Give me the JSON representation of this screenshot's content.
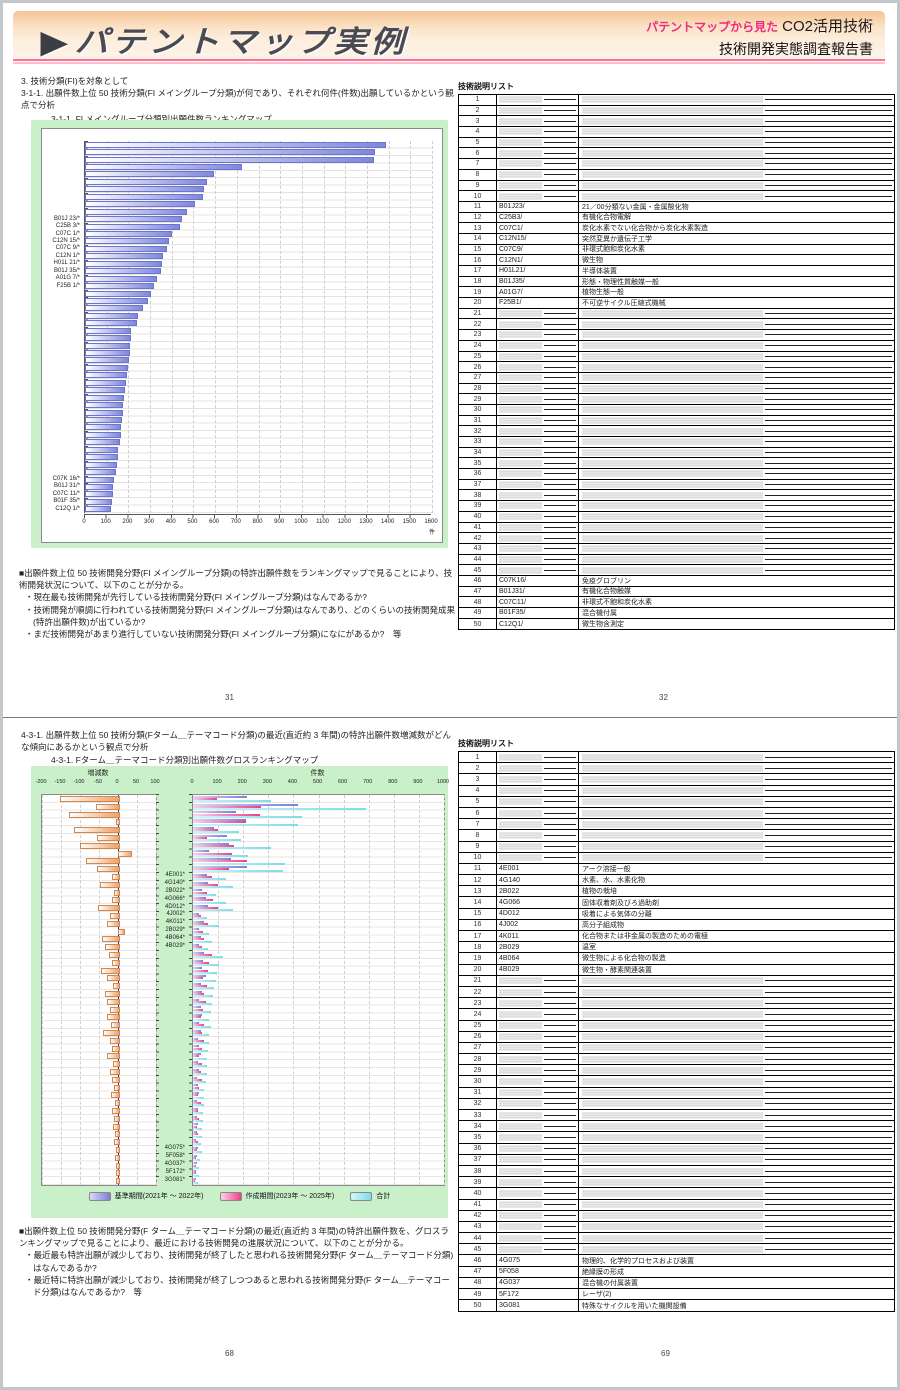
{
  "header": {
    "title": "パテントマップ実例",
    "right_pink": "パテントマップから見た",
    "right_black": "CO2活用技術",
    "right_line2": "技術開発実態調査報告書",
    "colors": {
      "accent_pink": "#ee2b7e",
      "header_top": "#f5c493",
      "header_bottom": "#fdf3e8",
      "underline": "#ff6e96",
      "chart_bg_green": "#c9f0c9"
    }
  },
  "section1": {
    "heading": "3. 技術分類(FI)を対象として",
    "subheading": "3-1-1. 出願件数上位 50 技術分類(FI メイングループ分類)が何であり、それぞれ何件(件数)出願しているかという観点で分析",
    "chart_caption": "3-1-1. FI メイングループ分類別出願件数ランキングマップ",
    "notes_intro": "■出願件数上位 50 技術開発分野(FI メイングループ分類)の特許出願件数をランキングマップで見ることにより、技術開発状況について、以下のことが分かる。",
    "notes": [
      "・現在最も技術開発が先行している技術開発分野(FI メイングループ分類)はなんであるか?",
      "・技術開発が順調に行われている技術開発分野(FI メイングループ分類)はなんであり、どのくらいの技術開発成果(特許出願件数)が出ているか?",
      "・まだ技術開発があまり進行していない技術開発分野(FI メイングループ分類)になにがあるか?　等"
    ],
    "page_left": "31",
    "page_right": "32",
    "table": {
      "title": "技術説明リスト",
      "rows": [
        [
          "1",
          "",
          ""
        ],
        [
          "2",
          "",
          ""
        ],
        [
          "3",
          "",
          ""
        ],
        [
          "4",
          "",
          ""
        ],
        [
          "5",
          "",
          ""
        ],
        [
          "6",
          "",
          ""
        ],
        [
          "7",
          "",
          ""
        ],
        [
          "8",
          "",
          ""
        ],
        [
          "9",
          "",
          ""
        ],
        [
          "10",
          "",
          ""
        ],
        [
          "11",
          "B01J23/",
          "21／00分類ない金属・金属酸化物"
        ],
        [
          "12",
          "C25B3/",
          "有機化合物電解"
        ],
        [
          "13",
          "C07C1/",
          "炭化水素でない化合物から炭化水素製造"
        ],
        [
          "14",
          "C12N15/",
          "突然変異か遺伝子工学"
        ],
        [
          "15",
          "C07C9/",
          "非環式飽和炭化水素"
        ],
        [
          "16",
          "C12N1/",
          "微生物"
        ],
        [
          "17",
          "H01L21/",
          "半導体装置"
        ],
        [
          "18",
          "B01J35/",
          "形態・物理性質触媒一般"
        ],
        [
          "19",
          "A01G7/",
          "植物生態一般"
        ],
        [
          "20",
          "F25B1/",
          "不可逆サイクル圧縮式機械"
        ],
        [
          "21",
          "",
          ""
        ],
        [
          "22",
          "",
          ""
        ],
        [
          "23",
          "",
          ""
        ],
        [
          "24",
          "",
          ""
        ],
        [
          "25",
          "",
          ""
        ],
        [
          "26",
          "",
          ""
        ],
        [
          "27",
          "",
          ""
        ],
        [
          "28",
          "",
          ""
        ],
        [
          "29",
          "",
          ""
        ],
        [
          "30",
          "",
          ""
        ],
        [
          "31",
          "",
          ""
        ],
        [
          "32",
          "",
          ""
        ],
        [
          "33",
          "",
          ""
        ],
        [
          "34",
          "",
          ""
        ],
        [
          "35",
          "",
          ""
        ],
        [
          "36",
          "",
          ""
        ],
        [
          "37",
          "",
          ""
        ],
        [
          "38",
          "",
          ""
        ],
        [
          "39",
          "",
          ""
        ],
        [
          "40",
          "",
          ""
        ],
        [
          "41",
          "",
          ""
        ],
        [
          "42",
          "",
          ""
        ],
        [
          "43",
          "",
          ""
        ],
        [
          "44",
          "",
          ""
        ],
        [
          "45",
          "",
          ""
        ],
        [
          "46",
          "C07K16/",
          "免疫グロブリン"
        ],
        [
          "47",
          "B01J31/",
          "有機化合物触媒"
        ],
        [
          "48",
          "C07C11/",
          "非環式不飽和炭化水素"
        ],
        [
          "49",
          "B01F35/",
          "混合機付属"
        ],
        [
          "50",
          "C12Q1/",
          "微生物含測定"
        ]
      ]
    }
  },
  "section2": {
    "subheading": "4-3-1. 出願件数上位 50 技術分類(Fターム＿テーマコード分類)の最近(直近約 3 年間)の特許出願件数増減数がどんな傾向にあるかという観点で分析",
    "chart_caption": "4-3-1. Fターム＿テーマコード分類別出願件数グロスランキングマップ",
    "notes_intro": "■出願件数上位 50 技術開発分野(F ターム＿テーマコード分類)の最近(直近約 3 年間)の特許出願件数を、グロスランキングマップで見ることにより、最近における技術開発の進展状況について、以下のことが分かる。",
    "notes": [
      "・最近最も特許出願が減少しており、技術開発が終了したと思われる技術開発分野(F ターム＿テーマコード分類)はなんであるか?",
      "・最近特に特許出願が減少しており、技術開発が終了しつつあると思われる技術開発分野(F ターム＿テーマコード分類)はなんであるか?　等"
    ],
    "page_left": "68",
    "page_right": "69",
    "table": {
      "title": "技術説明リスト",
      "rows": [
        [
          "1",
          "",
          ""
        ],
        [
          "2",
          "",
          ""
        ],
        [
          "3",
          "",
          ""
        ],
        [
          "4",
          "",
          ""
        ],
        [
          "5",
          "",
          ""
        ],
        [
          "6",
          "",
          ""
        ],
        [
          "7",
          "",
          ""
        ],
        [
          "8",
          "",
          ""
        ],
        [
          "9",
          "",
          ""
        ],
        [
          "10",
          "",
          ""
        ],
        [
          "11",
          "4E001",
          "アーク溶接一般"
        ],
        [
          "12",
          "4G140",
          "水素、水、水素化物"
        ],
        [
          "13",
          "2B022",
          "植物の栽培"
        ],
        [
          "14",
          "4G066",
          "固体収着剤及びろ過助剤"
        ],
        [
          "15",
          "4D012",
          "吸着による気体の分離"
        ],
        [
          "16",
          "4J002",
          "高分子組成物"
        ],
        [
          "17",
          "4K011",
          "化合物または非金属の製造のための電極"
        ],
        [
          "18",
          "2B029",
          "温室"
        ],
        [
          "19",
          "4B064",
          "微生物による化合物の製造"
        ],
        [
          "20",
          "4B029",
          "微生物・酵素関連装置"
        ],
        [
          "21",
          "",
          ""
        ],
        [
          "22",
          "",
          ""
        ],
        [
          "23",
          "",
          ""
        ],
        [
          "24",
          "",
          ""
        ],
        [
          "25",
          "",
          ""
        ],
        [
          "26",
          "",
          ""
        ],
        [
          "27",
          "",
          ""
        ],
        [
          "28",
          "",
          ""
        ],
        [
          "29",
          "",
          ""
        ],
        [
          "30",
          "",
          ""
        ],
        [
          "31",
          "",
          ""
        ],
        [
          "32",
          "",
          ""
        ],
        [
          "33",
          "",
          ""
        ],
        [
          "34",
          "",
          ""
        ],
        [
          "35",
          "",
          ""
        ],
        [
          "36",
          "",
          ""
        ],
        [
          "37",
          "",
          ""
        ],
        [
          "38",
          "",
          ""
        ],
        [
          "39",
          "",
          ""
        ],
        [
          "40",
          "",
          ""
        ],
        [
          "41",
          "",
          ""
        ],
        [
          "42",
          "",
          ""
        ],
        [
          "43",
          "",
          ""
        ],
        [
          "44",
          "",
          ""
        ],
        [
          "45",
          "",
          ""
        ],
        [
          "46",
          "4G075",
          "物理的、化学的プロセスおよび装置"
        ],
        [
          "47",
          "5F058",
          "絶縁膜の形成"
        ],
        [
          "48",
          "4G037",
          "混合機の付属装置"
        ],
        [
          "49",
          "5F172",
          "レーザ(2)"
        ],
        [
          "50",
          "3G081",
          "特殊なサイクルを用いた機関設備"
        ]
      ]
    }
  },
  "chart_data": [
    {
      "type": "bar",
      "orientation": "horizontal",
      "title": "3-1-1. FI メイングループ分類別出願件数ランキングマップ",
      "xlabel": "件",
      "xlim": [
        0,
        1600
      ],
      "xtick_step": 100,
      "grid": true,
      "bar_gradient": [
        "#ffffff",
        "#7f87dd"
      ],
      "categories": [
        "",
        "",
        "",
        "",
        "",
        "",
        "",
        "",
        "",
        "",
        "B01J 23/*",
        "C25B 3/*",
        "C07C 1/*",
        "C12N 15/*",
        "C07C 9/*",
        "C12N 1/*",
        "H01L 21/*",
        "B01J 35/*",
        "A01G 7/*",
        "F25B 1/*",
        "",
        "",
        "",
        "",
        "",
        "",
        "",
        "",
        "",
        "",
        "",
        "",
        "",
        "",
        "",
        "",
        "",
        "",
        "",
        "",
        "",
        "",
        "",
        "",
        "",
        "C07K 16/*",
        "B01J 31/*",
        "C07C 11/*",
        "B01F 35/*",
        "C12Q 1/*"
      ],
      "values": [
        1380,
        1330,
        1325,
        715,
        585,
        555,
        540,
        535,
        500,
        460,
        440,
        430,
        390,
        380,
        370,
        350,
        345,
        340,
        325,
        310,
        295,
        280,
        260,
        235,
        230,
        205,
        202,
        200,
        198,
        195,
        190,
        185,
        180,
        175,
        172,
        168,
        165,
        162,
        158,
        155,
        150,
        145,
        142,
        138,
        135,
        125,
        122,
        118,
        114,
        110
      ]
    },
    {
      "type": "bar",
      "orientation": "horizontal",
      "title": "4-3-1. Fターム＿テーマコード分類別出願件数グロスランキングマップ",
      "legend_position": "bottom",
      "categories": [
        "",
        "",
        "",
        "",
        "",
        "",
        "",
        "",
        "",
        "",
        "4E001*",
        "4G140*",
        "2B022*",
        "4G066*",
        "4D012*",
        "4J002*",
        "4K011*",
        "2B029*",
        "4B064*",
        "4B029*",
        "",
        "",
        "",
        "",
        "",
        "",
        "",
        "",
        "",
        "",
        "",
        "",
        "",
        "",
        "",
        "",
        "",
        "",
        "",
        "",
        "",
        "",
        "",
        "",
        "",
        "4G075*",
        "5F058*",
        "4G037*",
        "5F172*",
        "3G081*"
      ],
      "panels": [
        {
          "title": "増減数",
          "xlim": [
            -200,
            100
          ],
          "xtick_step": 50,
          "bar_gradient": [
            "#ffffff",
            "#efa066"
          ],
          "values": [
            -152,
            -59,
            -128,
            -5,
            -117,
            -55,
            -100,
            31,
            -83,
            -55,
            -17,
            -48,
            -10,
            -15,
            -52,
            -20,
            -28,
            12,
            -42,
            -35,
            -25,
            -15,
            -45,
            -30,
            -12,
            -35,
            -28,
            -20,
            -30,
            -18,
            -40,
            -22,
            -15,
            -28,
            -12,
            -20,
            -15,
            -10,
            -18,
            -8,
            -15,
            -10,
            -12,
            -8,
            -10,
            -6,
            -8,
            -5,
            -6,
            -4
          ]
        },
        {
          "title": "件数",
          "xlim": [
            0,
            1000
          ],
          "xtick_step": 100,
          "series": [
            {
              "name": "基準期間(2021年 ～ 2022年)",
              "color": "#7e7ed8",
              "values": [
                215,
                420,
                170,
                210,
                85,
                135,
                145,
                65,
                150,
                215,
                55,
                60,
                35,
                50,
                60,
                25,
                45,
                25,
                30,
                25,
                45,
                40,
                35,
                50,
                30,
                35,
                25,
                30,
                35,
                25,
                30,
                20,
                25,
                30,
                20,
                25,
                15,
                20,
                25,
                15,
                20,
                15,
                20,
                15,
                10,
                20,
                15,
                15,
                12,
                10
              ]
            },
            {
              "name": "作成期間(2023年 ～ 2025年)",
              "color": "#ec3f8c",
              "values": [
                95,
                270,
                265,
                210,
                100,
                55,
                165,
                155,
                215,
                145,
                75,
                100,
                55,
                80,
                100,
                30,
                60,
                40,
                45,
                35,
                75,
                65,
                60,
                40,
                55,
                45,
                50,
                40,
                30,
                45,
                35,
                45,
                35,
                25,
                35,
                30,
                35,
                25,
                20,
                30,
                20,
                25,
                15,
                20,
                20,
                15,
                12,
                10,
                10,
                8
              ]
            },
            {
              "name": "合計",
              "color": "#7edce8",
              "values": [
                310,
                690,
                435,
                420,
                185,
                190,
                310,
                220,
                365,
                360,
                130,
                160,
                90,
                130,
                160,
                55,
                105,
                65,
                75,
                60,
                120,
                105,
                95,
                90,
                85,
                80,
                75,
                70,
                65,
                70,
                65,
                65,
                60,
                55,
                55,
                55,
                50,
                45,
                45,
                45,
                40,
                40,
                35,
                35,
                30,
                35,
                27,
                25,
                22,
                18
              ]
            }
          ]
        }
      ]
    }
  ]
}
